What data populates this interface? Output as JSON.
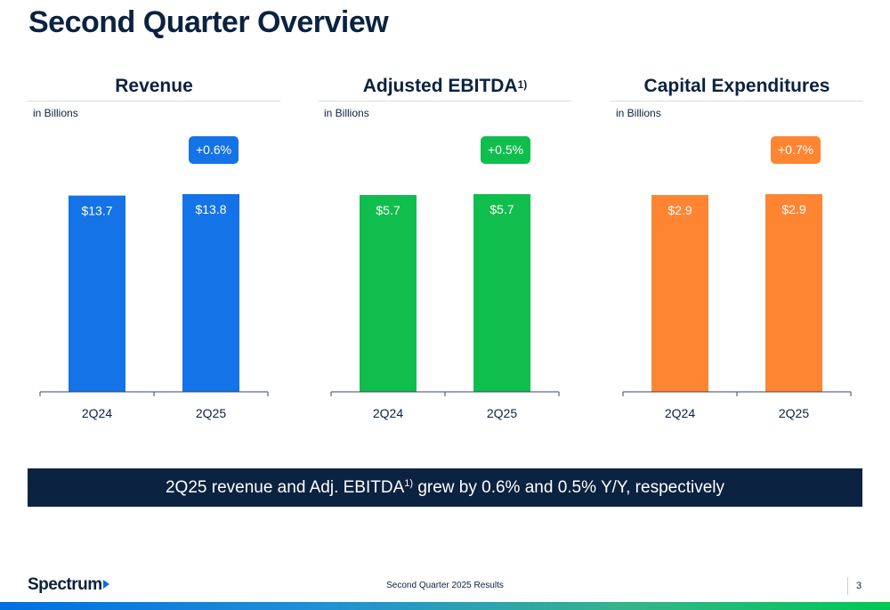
{
  "page": {
    "title": "Second Quarter Overview"
  },
  "colors": {
    "revenue": "#1473e6",
    "ebitda": "#0fbe4c",
    "capex": "#ff8533",
    "navy": "#0b2240"
  },
  "chart_data": [
    {
      "type": "bar",
      "title": "Revenue",
      "unit_label": "in Billions",
      "categories": [
        "2Q24",
        "2Q25"
      ],
      "values": [
        13.7,
        13.8
      ],
      "value_labels": [
        "$13.7",
        "$13.8"
      ],
      "change_label": "+0.6%",
      "color": "#1473e6"
    },
    {
      "type": "bar",
      "title": "Adjusted EBITDA",
      "title_footnote": "1)",
      "unit_label": "in Billions",
      "categories": [
        "2Q24",
        "2Q25"
      ],
      "values": [
        5.7,
        5.7
      ],
      "value_labels": [
        "$5.7",
        "$5.7"
      ],
      "change_label": "+0.5%",
      "color": "#0fbe4c"
    },
    {
      "type": "bar",
      "title": "Capital Expenditures",
      "unit_label": "in Billions",
      "categories": [
        "2Q24",
        "2Q25"
      ],
      "values": [
        2.9,
        2.9
      ],
      "value_labels": [
        "$2.9",
        "$2.9"
      ],
      "change_label": "+0.7%",
      "color": "#ff8533"
    }
  ],
  "banner": {
    "text_before": "2Q25 revenue and Adj. EBITDA",
    "footnote": "1)",
    "text_after": " grew by 0.6% and 0.5% Y/Y, respectively"
  },
  "footer": {
    "logo": "Spectrum",
    "center_text": "Second Quarter 2025 Results",
    "page_number": "3"
  }
}
